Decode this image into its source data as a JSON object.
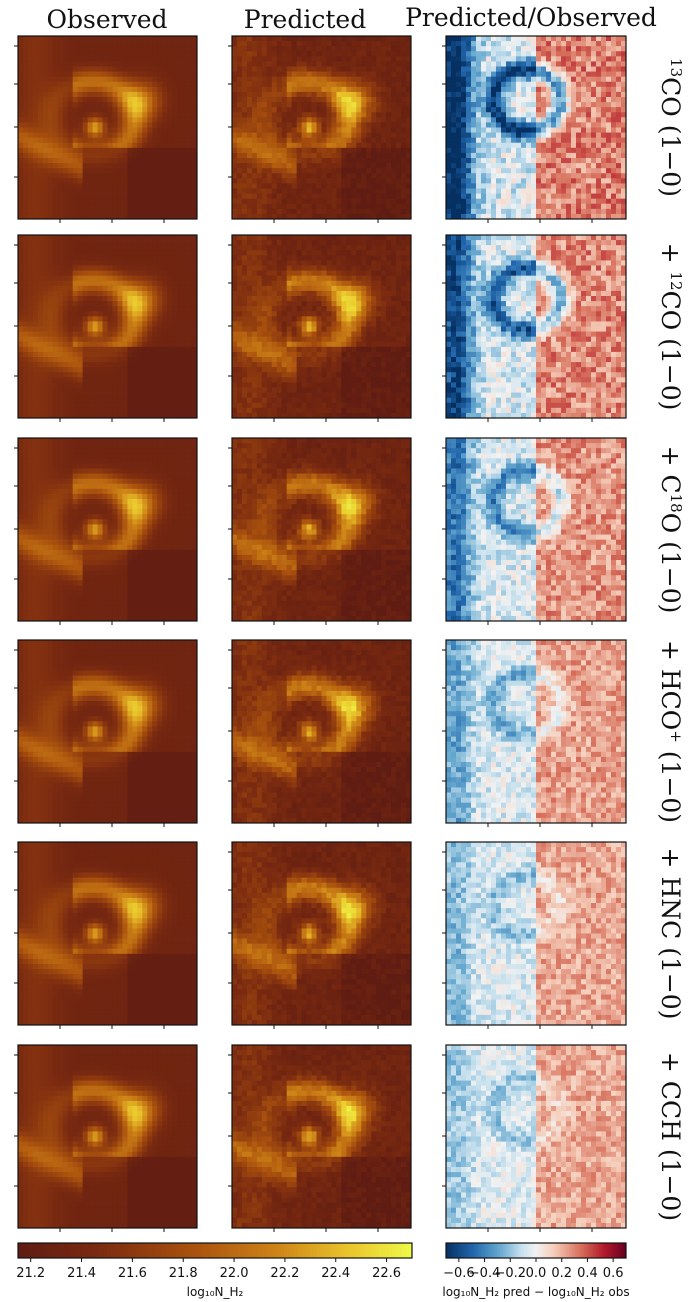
{
  "chart_data": {
    "type": "heatmap",
    "column_titles": [
      "Observed",
      "Predicted",
      "Predicted/Observed"
    ],
    "rows": [
      {
        "label_sup": "13",
        "label_main": "CO (1−0)"
      },
      {
        "label_main": "+ ",
        "label_sup": "12",
        "label_tail": "CO (1−0)"
      },
      {
        "label_main": "+ C",
        "label_sup": "18",
        "label_tail": "O (1−0)"
      },
      {
        "label_main": "+ HCO",
        "label_sup": "+",
        "label_tail": " (1−0)"
      },
      {
        "label_main": "+ HNC (1−0)"
      },
      {
        "label_main": "+ CCH (1−0)"
      }
    ],
    "residual_strength": [
      1.0,
      0.85,
      0.65,
      0.45,
      0.35,
      0.3
    ],
    "colorbar_left": {
      "range": [
        21.15,
        22.7
      ],
      "ticks": [
        "21.2",
        "21.4",
        "21.6",
        "21.8",
        "22.0",
        "22.2",
        "22.4",
        "22.6"
      ],
      "tick_values": [
        21.2,
        21.4,
        21.6,
        21.8,
        22.0,
        22.2,
        22.4,
        22.6
      ],
      "label": "log₁₀N_H₂",
      "colormap": "afmhot-like"
    },
    "colorbar_right": {
      "range": [
        -0.7,
        0.7
      ],
      "ticks": [
        "−0.6",
        "−0.4",
        "−0.2",
        "0.0",
        "0.2",
        "0.4",
        "0.6"
      ],
      "tick_values": [
        -0.6,
        -0.4,
        -0.2,
        0.0,
        0.2,
        0.4,
        0.6
      ],
      "label": "log₁₀N_H₂ pred − log₁₀N_H₂ obs",
      "colormap": "RdBu_r"
    }
  }
}
